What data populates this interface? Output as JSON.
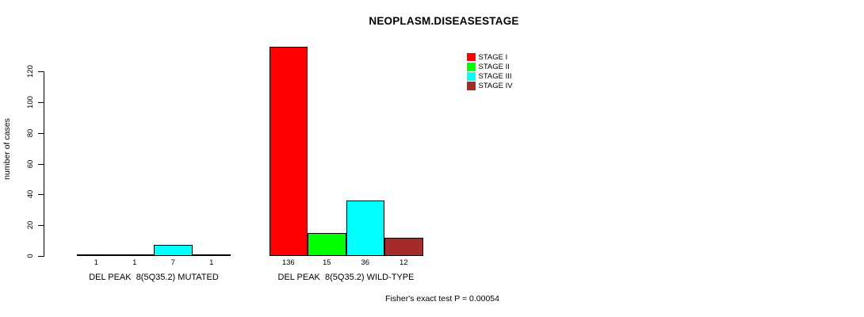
{
  "chart_data": {
    "type": "bar",
    "title": "NEOPLASM.DISEASESTAGE",
    "ylabel": "number of cases",
    "xlabel": "",
    "ylim": [
      0,
      136
    ],
    "yticks": [
      0,
      20,
      40,
      60,
      80,
      100,
      120
    ],
    "grid": false,
    "legend_position": "top-right",
    "categories": [
      "DEL PEAK  8(5Q35.2) MUTATED",
      "DEL PEAK  8(5Q35.2) WILD-TYPE"
    ],
    "series": [
      {
        "name": "STAGE I",
        "color": "#FF0000",
        "values": [
          1,
          136
        ]
      },
      {
        "name": "STAGE II",
        "color": "#00FF00",
        "values": [
          1,
          15
        ]
      },
      {
        "name": "STAGE III",
        "color": "#00FFFF",
        "values": [
          7,
          36
        ]
      },
      {
        "name": "STAGE IV",
        "color": "#A52A2A",
        "values": [
          1,
          12
        ]
      }
    ],
    "bar_value_labels": true,
    "annotation": "Fisher's exact test P = 0.00054"
  }
}
